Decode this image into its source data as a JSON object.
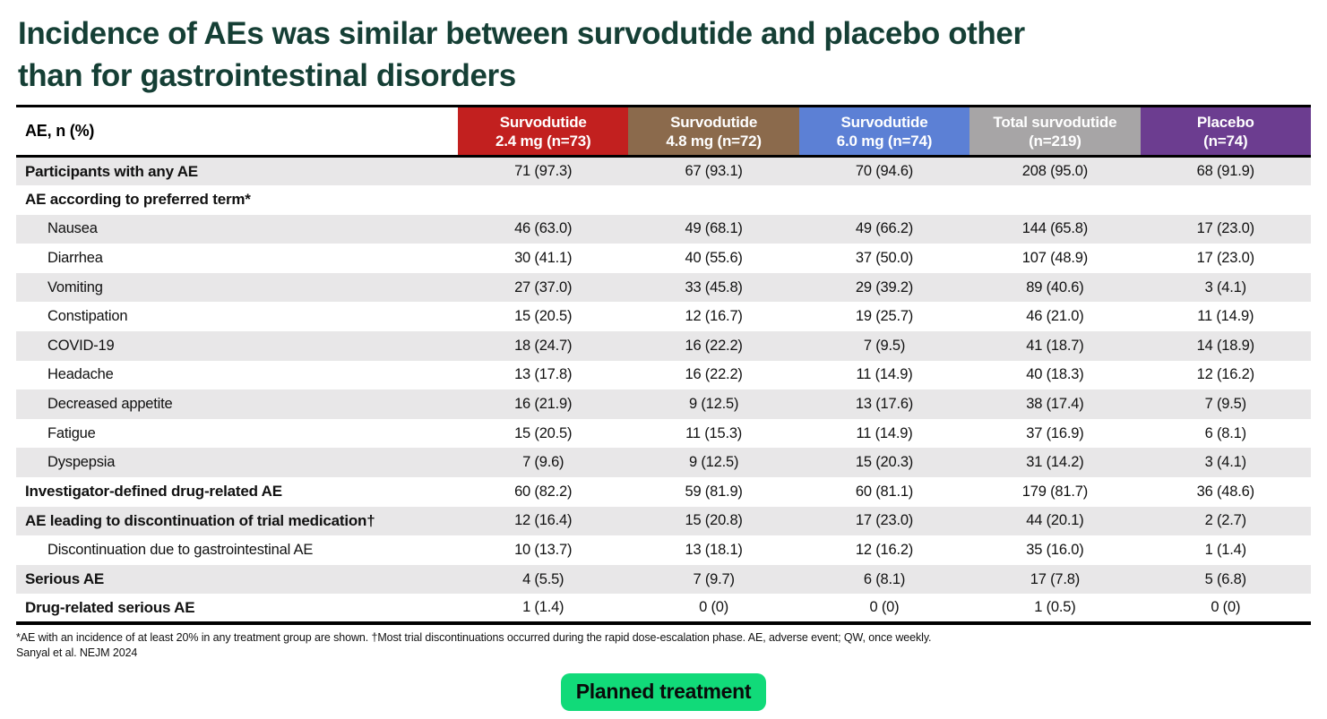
{
  "title": {
    "line1": "Incidence of AEs was similar between survodutide and placebo other",
    "line2": "than for gastrointestinal disorders"
  },
  "table": {
    "corner_header": "AE, n (%)",
    "columns": [
      {
        "line1": "Survodutide",
        "line2": "2.4 mg (n=73)",
        "color": "#c2201f"
      },
      {
        "line1": "Survodutide",
        "line2": "4.8 mg (n=72)",
        "color": "#8b6a4c"
      },
      {
        "line1": "Survodutide",
        "line2": "6.0 mg (n=74)",
        "color": "#5c80d5"
      },
      {
        "line1": "Total survodutide",
        "line2": "(n=219)",
        "color": "#a7a5a6"
      },
      {
        "line1": "Placebo",
        "line2": "(n=74)",
        "color": "#6c3d90"
      }
    ],
    "rows": [
      {
        "label": "Participants with any AE",
        "bold": true,
        "indent": false,
        "values": [
          "71 (97.3)",
          "67 (93.1)",
          "70 (94.6)",
          "208 (95.0)",
          "68 (91.9)"
        ]
      },
      {
        "label": "AE according to preferred term*",
        "bold": true,
        "indent": false,
        "values": [
          "",
          "",
          "",
          "",
          ""
        ]
      },
      {
        "label": "Nausea",
        "bold": false,
        "indent": true,
        "values": [
          "46 (63.0)",
          "49 (68.1)",
          "49 (66.2)",
          "144 (65.8)",
          "17 (23.0)"
        ]
      },
      {
        "label": "Diarrhea",
        "bold": false,
        "indent": true,
        "values": [
          "30 (41.1)",
          "40 (55.6)",
          "37 (50.0)",
          "107 (48.9)",
          "17 (23.0)"
        ]
      },
      {
        "label": "Vomiting",
        "bold": false,
        "indent": true,
        "values": [
          "27 (37.0)",
          "33 (45.8)",
          "29 (39.2)",
          "89 (40.6)",
          "3 (4.1)"
        ]
      },
      {
        "label": "Constipation",
        "bold": false,
        "indent": true,
        "values": [
          "15 (20.5)",
          "12 (16.7)",
          "19 (25.7)",
          "46 (21.0)",
          "11 (14.9)"
        ]
      },
      {
        "label": "COVID-19",
        "bold": false,
        "indent": true,
        "values": [
          "18 (24.7)",
          "16 (22.2)",
          "7 (9.5)",
          "41 (18.7)",
          "14 (18.9)"
        ]
      },
      {
        "label": "Headache",
        "bold": false,
        "indent": true,
        "values": [
          "13 (17.8)",
          "16 (22.2)",
          "11 (14.9)",
          "40 (18.3)",
          "12 (16.2)"
        ]
      },
      {
        "label": "Decreased appetite",
        "bold": false,
        "indent": true,
        "values": [
          "16 (21.9)",
          "9 (12.5)",
          "13 (17.6)",
          "38 (17.4)",
          "7 (9.5)"
        ]
      },
      {
        "label": "Fatigue",
        "bold": false,
        "indent": true,
        "values": [
          "15 (20.5)",
          "11 (15.3)",
          "11 (14.9)",
          "37 (16.9)",
          "6 (8.1)"
        ]
      },
      {
        "label": "Dyspepsia",
        "bold": false,
        "indent": true,
        "values": [
          "7 (9.6)",
          "9 (12.5)",
          "15 (20.3)",
          "31 (14.2)",
          "3 (4.1)"
        ]
      },
      {
        "label": "Investigator-defined drug-related AE",
        "bold": true,
        "indent": false,
        "values": [
          "60 (82.2)",
          "59 (81.9)",
          "60 (81.1)",
          "179 (81.7)",
          "36 (48.6)"
        ]
      },
      {
        "label": "AE leading to discontinuation of trial medication†",
        "bold": true,
        "indent": false,
        "values": [
          "12 (16.4)",
          "15 (20.8)",
          "17 (23.0)",
          "44 (20.1)",
          "2 (2.7)"
        ]
      },
      {
        "label": "Discontinuation due to gastrointestinal AE",
        "bold": false,
        "indent": true,
        "values": [
          "10 (13.7)",
          "13 (18.1)",
          "12 (16.2)",
          "35 (16.0)",
          "1 (1.4)"
        ]
      },
      {
        "label": "Serious AE",
        "bold": true,
        "indent": false,
        "values": [
          "4 (5.5)",
          "7 (9.7)",
          "6 (8.1)",
          "17 (7.8)",
          "5 (6.8)"
        ]
      },
      {
        "label": "Drug-related serious AE",
        "bold": true,
        "indent": false,
        "values": [
          "1 (1.4)",
          "0 (0)",
          "0 (0)",
          "1 (0.5)",
          "0 (0)"
        ]
      }
    ]
  },
  "footnote": "*AE with an incidence of at least 20% in any treatment group are shown. †Most trial discontinuations occurred during the rapid dose-escalation phase. AE, adverse event; QW, once weekly.",
  "source": "Sanyal et al. NEJM 2024",
  "footer_button": {
    "label": "Planned treatment",
    "color": "#11da79",
    "text_color": "#0a0a0a"
  }
}
